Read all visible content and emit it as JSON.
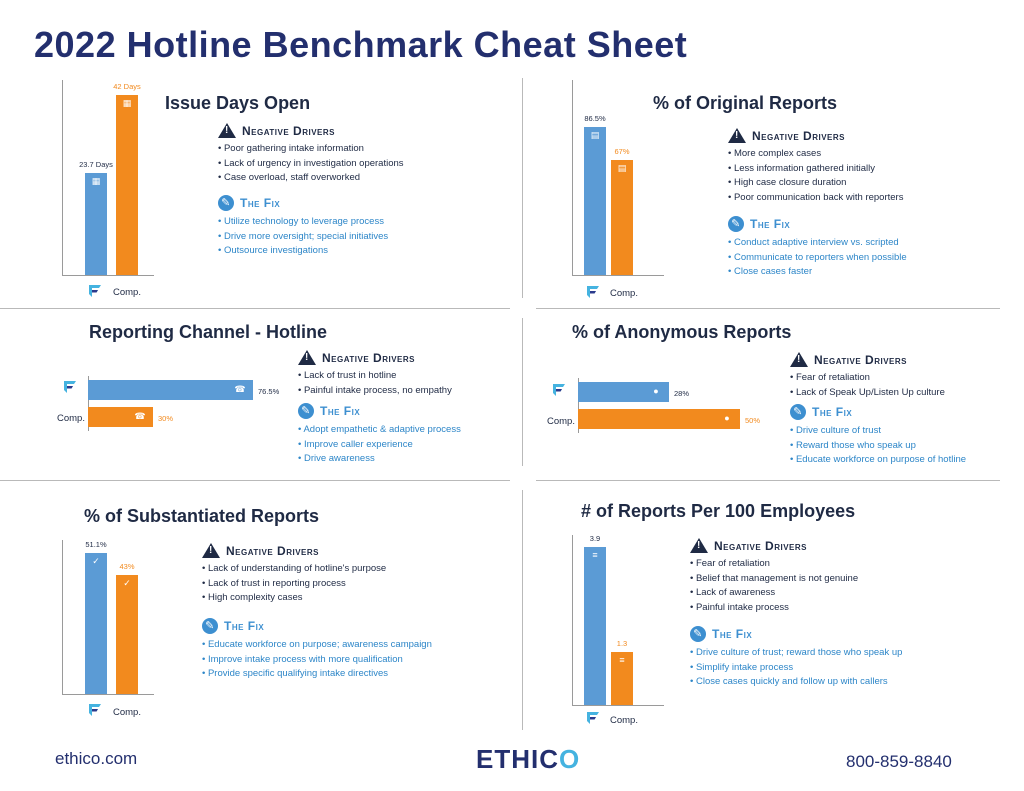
{
  "title": "2022 Hotline Benchmark Cheat Sheet",
  "labels": {
    "negative_drivers": "Negative Drivers",
    "the_fix": "The Fix",
    "comp": "Comp."
  },
  "colors": {
    "ethico": "#5b9bd5",
    "comp": "#f28a1e",
    "title": "#232f6e",
    "fix_text": "#2d86c8"
  },
  "footer": {
    "website": "ethico.com",
    "brand_pre": "ETHIC",
    "brand_o": "O",
    "phone": "800-859-8840"
  },
  "chart_data": [
    {
      "type": "bar",
      "orientation": "vertical",
      "title": "Issue Days Open",
      "series": [
        {
          "values": [
            23.7,
            42
          ]
        }
      ],
      "value_labels": [
        "23.7 Days",
        "42 Days"
      ],
      "ylim": [
        0,
        42
      ],
      "icon": "calendar-icon",
      "negative_drivers": [
        "Poor gathering intake information",
        "Lack of urgency in investigation operations",
        "Case overload, staff overworked"
      ],
      "fix": [
        "Utilize technology to leverage process",
        "Drive more oversight; special initiatives",
        "Outsource investigations"
      ]
    },
    {
      "type": "bar",
      "orientation": "vertical",
      "title": "% of Original Reports",
      "series": [
        {
          "values": [
            86.5,
            67
          ]
        }
      ],
      "value_labels": [
        "86.5%",
        "67%"
      ],
      "ylim": [
        0,
        86.5
      ],
      "icon": "document-icon",
      "negative_drivers": [
        "More complex cases",
        "Less information gathered initially",
        "High case closure duration",
        "Poor communication back with reporters"
      ],
      "fix": [
        "Conduct adaptive interview vs. scripted",
        "Communicate to reporters when possible",
        "Close cases faster"
      ]
    },
    {
      "type": "bar",
      "orientation": "horizontal",
      "title": "Reporting Channel - Hotline",
      "series": [
        {
          "values": [
            76.5,
            30
          ]
        }
      ],
      "value_labels": [
        "76.5%",
        "30%"
      ],
      "xlim": [
        0,
        76.5
      ],
      "icon": "phone-icon",
      "negative_drivers": [
        "Lack of trust in hotline",
        "Painful intake process, no empathy"
      ],
      "fix": [
        "Adopt empathetic & adaptive process",
        "Improve caller experience",
        "Drive awareness"
      ]
    },
    {
      "type": "bar",
      "orientation": "horizontal",
      "title": "% of Anonymous Reports",
      "series": [
        {
          "values": [
            28,
            50
          ]
        }
      ],
      "value_labels": [
        "28%",
        "50%"
      ],
      "xlim": [
        0,
        50
      ],
      "icon": "person-icon",
      "negative_drivers": [
        "Fear of retaliation",
        "Lack of Speak Up/Listen Up culture"
      ],
      "fix": [
        "Drive culture of trust",
        "Reward those who speak up",
        "Educate workforce on purpose of hotline"
      ]
    },
    {
      "type": "bar",
      "orientation": "vertical",
      "title": "% of Substantiated Reports",
      "series": [
        {
          "values": [
            51.1,
            43
          ]
        }
      ],
      "value_labels": [
        "51.1%",
        "43%"
      ],
      "ylim": [
        0,
        51.1
      ],
      "icon": "check-icon",
      "negative_drivers": [
        "Lack of understanding of hotline's purpose",
        "Lack of trust in reporting process",
        "High complexity cases"
      ],
      "fix": [
        "Educate workforce on purpose; awareness campaign",
        "Improve intake process with more qualification",
        "Provide specific qualifying intake directives"
      ]
    },
    {
      "type": "bar",
      "orientation": "vertical",
      "title": "# of Reports Per 100 Employees",
      "series": [
        {
          "values": [
            3.9,
            1.3
          ]
        }
      ],
      "value_labels": [
        "3.9",
        "1.3"
      ],
      "ylim": [
        0,
        3.9
      ],
      "icon": "report-icon",
      "negative_drivers": [
        "Fear of retaliation",
        "Belief that management is not genuine",
        "Lack of awareness",
        "Painful intake process"
      ],
      "fix": [
        "Drive culture of trust; reward those who speak up",
        "Simplify intake process",
        "Close cases quickly and follow up with callers"
      ]
    }
  ]
}
